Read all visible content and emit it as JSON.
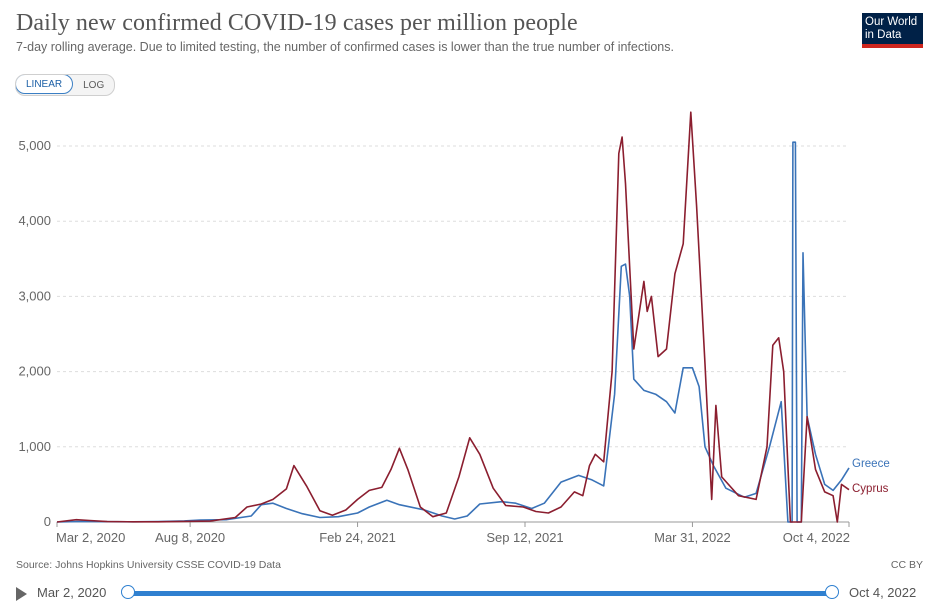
{
  "header": {
    "title": "Daily new confirmed COVID-19 cases per million people",
    "subtitle": "7-day rolling average. Due to limited testing, the number of confirmed cases is lower than the true number of infections.",
    "logo_line1": "Our World",
    "logo_line2": "in Data"
  },
  "toggle": {
    "linear_label": "LINEAR",
    "log_label": "LOG",
    "selected": "LINEAR"
  },
  "footer": {
    "source": "Source: Johns Hopkins University CSSE COVID-19 Data",
    "license": "CC BY"
  },
  "timeline": {
    "start_label": "Mar 2, 2020",
    "end_label": "Oct 4, 2022",
    "start_fraction": 0,
    "end_fraction": 1
  },
  "colors": {
    "greece": "#3a73b8",
    "cyprus": "#8b1e2f",
    "grid": "#dddddd",
    "axis": "#999999",
    "accent": "#2f80d0"
  },
  "chart_data": {
    "type": "line",
    "title": "Daily new confirmed COVID-19 cases per million people",
    "xlabel": "",
    "ylabel": "",
    "ylim": [
      0,
      5000
    ],
    "yticks": [
      0,
      1000,
      2000,
      3000,
      4000,
      5000
    ],
    "ytick_labels": [
      "0",
      "1,000",
      "2,000",
      "3,000",
      "4,000",
      "5,000"
    ],
    "xlim": [
      "2020-03-02",
      "2022-10-04"
    ],
    "xticks": [
      "2020-03-02",
      "2020-08-08",
      "2021-02-24",
      "2021-09-12",
      "2022-03-31",
      "2022-10-04"
    ],
    "xtick_labels": [
      "Mar 2, 2020",
      "Aug 8, 2020",
      "Feb 24, 2021",
      "Sep 12, 2021",
      "Mar 31, 2022",
      "Oct 4, 2022"
    ],
    "grid": "horizontal",
    "legend": "end-of-line labels",
    "series": [
      {
        "name": "Greece",
        "color": "#3a73b8",
        "points": [
          [
            "2020-03-02",
            0
          ],
          [
            "2020-04-01",
            8
          ],
          [
            "2020-05-01",
            4
          ],
          [
            "2020-06-01",
            2
          ],
          [
            "2020-07-01",
            5
          ],
          [
            "2020-08-01",
            15
          ],
          [
            "2020-08-20",
            25
          ],
          [
            "2020-09-20",
            30
          ],
          [
            "2020-10-20",
            80
          ],
          [
            "2020-11-01",
            230
          ],
          [
            "2020-11-15",
            250
          ],
          [
            "2020-12-01",
            180
          ],
          [
            "2020-12-20",
            110
          ],
          [
            "2021-01-10",
            60
          ],
          [
            "2021-02-01",
            70
          ],
          [
            "2021-02-24",
            120
          ],
          [
            "2021-03-10",
            200
          ],
          [
            "2021-03-31",
            290
          ],
          [
            "2021-04-15",
            230
          ],
          [
            "2021-05-15",
            160
          ],
          [
            "2021-06-05",
            80
          ],
          [
            "2021-06-20",
            40
          ],
          [
            "2021-07-05",
            80
          ],
          [
            "2021-07-20",
            240
          ],
          [
            "2021-08-15",
            270
          ],
          [
            "2021-09-01",
            250
          ],
          [
            "2021-09-20",
            180
          ],
          [
            "2021-10-05",
            250
          ],
          [
            "2021-10-25",
            530
          ],
          [
            "2021-11-15",
            620
          ],
          [
            "2021-12-01",
            560
          ],
          [
            "2021-12-15",
            480
          ],
          [
            "2021-12-28",
            1700
          ],
          [
            "2022-01-05",
            3400
          ],
          [
            "2022-01-10",
            3430
          ],
          [
            "2022-01-15",
            3000
          ],
          [
            "2022-01-20",
            1900
          ],
          [
            "2022-02-01",
            1750
          ],
          [
            "2022-02-15",
            1700
          ],
          [
            "2022-02-28",
            1600
          ],
          [
            "2022-03-10",
            1450
          ],
          [
            "2022-03-20",
            2050
          ],
          [
            "2022-03-31",
            2050
          ],
          [
            "2022-04-08",
            1800
          ],
          [
            "2022-04-15",
            1000
          ],
          [
            "2022-04-25",
            750
          ],
          [
            "2022-05-10",
            450
          ],
          [
            "2022-06-01",
            330
          ],
          [
            "2022-06-15",
            380
          ],
          [
            "2022-07-01",
            1000
          ],
          [
            "2022-07-15",
            1600
          ],
          [
            "2022-07-23",
            0
          ],
          [
            "2022-07-28",
            0
          ],
          [
            "2022-07-29",
            5050
          ],
          [
            "2022-08-01",
            5050
          ],
          [
            "2022-08-03",
            0
          ],
          [
            "2022-08-08",
            0
          ],
          [
            "2022-08-10",
            3580
          ],
          [
            "2022-08-15",
            1400
          ],
          [
            "2022-08-25",
            900
          ],
          [
            "2022-09-05",
            500
          ],
          [
            "2022-09-15",
            420
          ],
          [
            "2022-09-25",
            560
          ],
          [
            "2022-10-04",
            720
          ]
        ]
      },
      {
        "name": "Cyprus",
        "color": "#8b1e2f",
        "points": [
          [
            "2020-03-02",
            0
          ],
          [
            "2020-03-25",
            30
          ],
          [
            "2020-04-10",
            20
          ],
          [
            "2020-05-01",
            5
          ],
          [
            "2020-06-01",
            3
          ],
          [
            "2020-07-01",
            3
          ],
          [
            "2020-08-01",
            8
          ],
          [
            "2020-09-01",
            12
          ],
          [
            "2020-10-01",
            60
          ],
          [
            "2020-10-15",
            200
          ],
          [
            "2020-11-01",
            240
          ],
          [
            "2020-11-15",
            300
          ],
          [
            "2020-12-01",
            440
          ],
          [
            "2020-12-10",
            750
          ],
          [
            "2020-12-25",
            480
          ],
          [
            "2021-01-10",
            150
          ],
          [
            "2021-01-25",
            90
          ],
          [
            "2021-02-10",
            160
          ],
          [
            "2021-02-24",
            300
          ],
          [
            "2021-03-10",
            420
          ],
          [
            "2021-03-25",
            460
          ],
          [
            "2021-04-05",
            700
          ],
          [
            "2021-04-15",
            980
          ],
          [
            "2021-04-25",
            700
          ],
          [
            "2021-05-10",
            200
          ],
          [
            "2021-05-25",
            70
          ],
          [
            "2021-06-10",
            120
          ],
          [
            "2021-06-25",
            600
          ],
          [
            "2021-07-08",
            1120
          ],
          [
            "2021-07-20",
            900
          ],
          [
            "2021-08-05",
            450
          ],
          [
            "2021-08-20",
            220
          ],
          [
            "2021-09-10",
            200
          ],
          [
            "2021-09-25",
            140
          ],
          [
            "2021-10-10",
            120
          ],
          [
            "2021-10-25",
            200
          ],
          [
            "2021-11-10",
            400
          ],
          [
            "2021-11-20",
            350
          ],
          [
            "2021-11-28",
            750
          ],
          [
            "2021-12-05",
            900
          ],
          [
            "2021-12-15",
            800
          ],
          [
            "2021-12-25",
            2000
          ],
          [
            "2022-01-02",
            4900
          ],
          [
            "2022-01-06",
            5120
          ],
          [
            "2022-01-10",
            4500
          ],
          [
            "2022-01-20",
            2300
          ],
          [
            "2022-02-01",
            3200
          ],
          [
            "2022-02-05",
            2800
          ],
          [
            "2022-02-10",
            3000
          ],
          [
            "2022-02-18",
            2200
          ],
          [
            "2022-02-28",
            2300
          ],
          [
            "2022-03-10",
            3300
          ],
          [
            "2022-03-20",
            3700
          ],
          [
            "2022-03-29",
            5450
          ],
          [
            "2022-04-05",
            4200
          ],
          [
            "2022-04-15",
            2100
          ],
          [
            "2022-04-23",
            300
          ],
          [
            "2022-04-28",
            1550
          ],
          [
            "2022-05-05",
            600
          ],
          [
            "2022-05-25",
            350
          ],
          [
            "2022-06-15",
            300
          ],
          [
            "2022-06-28",
            1000
          ],
          [
            "2022-07-05",
            2350
          ],
          [
            "2022-07-12",
            2450
          ],
          [
            "2022-07-18",
            2000
          ],
          [
            "2022-07-26",
            0
          ],
          [
            "2022-08-08",
            0
          ],
          [
            "2022-08-15",
            1400
          ],
          [
            "2022-08-25",
            700
          ],
          [
            "2022-09-05",
            400
          ],
          [
            "2022-09-15",
            350
          ],
          [
            "2022-09-20",
            0
          ],
          [
            "2022-09-25",
            500
          ],
          [
            "2022-10-04",
            430
          ]
        ]
      }
    ]
  }
}
